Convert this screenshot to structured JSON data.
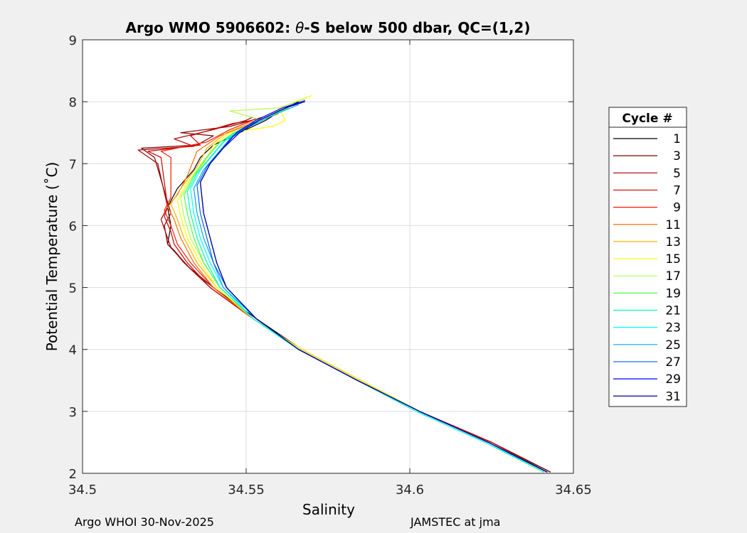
{
  "figure": {
    "footer_left": "Argo WHOI 30-Nov-2025",
    "footer_right": "JAMSTEC at jma"
  },
  "chart_data": {
    "type": "line",
    "title_prefix": "Argo WMO 5906602: ",
    "title_theta": "θ",
    "title_suffix": "-S below 500 dbar,  QC=(1,2)",
    "xlabel": "Salinity",
    "ylabel": "Potential Temperature (˚C)",
    "xlim": [
      34.5,
      34.65
    ],
    "ylim": [
      2,
      9
    ],
    "xticks": [
      34.5,
      34.55,
      34.6,
      34.65
    ],
    "xtick_labels": [
      "34.5",
      "34.55",
      "34.6",
      "34.65"
    ],
    "yticks": [
      2,
      3,
      4,
      5,
      6,
      7,
      8,
      9
    ],
    "ytick_labels": [
      "2",
      "3",
      "4",
      "5",
      "6",
      "7",
      "8",
      "9"
    ],
    "grid": true,
    "legend_title": "Cycle #",
    "legend_position": "outside-right",
    "series": [
      {
        "name": "1",
        "color": "#000000",
        "points": [
          [
            34.643,
            2.02
          ],
          [
            34.625,
            2.5
          ],
          [
            34.603,
            3.0
          ],
          [
            34.585,
            3.5
          ],
          [
            34.567,
            4.0
          ],
          [
            34.553,
            4.5
          ],
          [
            34.54,
            5.0
          ],
          [
            34.533,
            5.3
          ],
          [
            34.526,
            5.7
          ],
          [
            34.527,
            6.0
          ],
          [
            34.526,
            6.3
          ],
          [
            34.529,
            6.6
          ],
          [
            34.534,
            6.9
          ],
          [
            34.536,
            7.1
          ],
          [
            34.54,
            7.3
          ],
          [
            34.548,
            7.5
          ],
          [
            34.556,
            7.7
          ],
          [
            34.562,
            7.9
          ],
          [
            34.566,
            8.0
          ]
        ]
      },
      {
        "name": "3",
        "color": "#7f0000",
        "points": [
          [
            34.643,
            2.02
          ],
          [
            34.625,
            2.5
          ],
          [
            34.603,
            3.0
          ],
          [
            34.585,
            3.5
          ],
          [
            34.567,
            4.0
          ],
          [
            34.552,
            4.5
          ],
          [
            34.54,
            5.0
          ],
          [
            34.532,
            5.35
          ],
          [
            34.528,
            5.6
          ],
          [
            34.526,
            5.7
          ],
          [
            34.525,
            6.0
          ],
          [
            34.527,
            6.2
          ],
          [
            34.522,
            7.1
          ],
          [
            34.518,
            7.25
          ],
          [
            34.535,
            7.3
          ],
          [
            34.54,
            7.45
          ],
          [
            34.53,
            7.5
          ],
          [
            34.545,
            7.6
          ],
          [
            34.555,
            7.75
          ]
        ]
      },
      {
        "name": "5",
        "color": "#a80000",
        "points": [
          [
            34.642,
            2.02
          ],
          [
            34.625,
            2.5
          ],
          [
            34.603,
            3.0
          ],
          [
            34.585,
            3.5
          ],
          [
            34.567,
            4.0
          ],
          [
            34.552,
            4.5
          ],
          [
            34.539,
            5.0
          ],
          [
            34.531,
            5.4
          ],
          [
            34.527,
            5.65
          ],
          [
            34.526,
            5.8
          ],
          [
            34.524,
            6.1
          ],
          [
            34.526,
            6.3
          ],
          [
            34.523,
            7.0
          ],
          [
            34.517,
            7.22
          ],
          [
            34.534,
            7.28
          ],
          [
            34.528,
            7.4
          ],
          [
            34.54,
            7.55
          ],
          [
            34.55,
            7.7
          ],
          [
            34.552,
            7.75
          ]
        ]
      },
      {
        "name": "7",
        "color": "#d20000",
        "points": [
          [
            34.642,
            2.02
          ],
          [
            34.625,
            2.5
          ],
          [
            34.603,
            3.0
          ],
          [
            34.585,
            3.5
          ],
          [
            34.567,
            4.0
          ],
          [
            34.552,
            4.5
          ],
          [
            34.539,
            5.0
          ],
          [
            34.532,
            5.4
          ],
          [
            34.528,
            5.7
          ],
          [
            34.527,
            5.9
          ],
          [
            34.525,
            6.15
          ],
          [
            34.526,
            6.3
          ],
          [
            34.524,
            7.1
          ],
          [
            34.52,
            7.2
          ],
          [
            34.536,
            7.3
          ],
          [
            34.533,
            7.45
          ],
          [
            34.546,
            7.65
          ],
          [
            34.552,
            7.7
          ]
        ]
      },
      {
        "name": "9",
        "color": "#ff1a00",
        "points": [
          [
            34.642,
            2.02
          ],
          [
            34.624,
            2.5
          ],
          [
            34.603,
            3.0
          ],
          [
            34.585,
            3.5
          ],
          [
            34.567,
            4.0
          ],
          [
            34.552,
            4.5
          ],
          [
            34.54,
            5.0
          ],
          [
            34.533,
            5.4
          ],
          [
            34.529,
            5.7
          ],
          [
            34.527,
            6.0
          ],
          [
            34.525,
            6.25
          ],
          [
            34.527,
            6.45
          ],
          [
            34.527,
            7.1
          ],
          [
            34.524,
            7.2
          ],
          [
            34.538,
            7.35
          ],
          [
            34.545,
            7.55
          ],
          [
            34.552,
            7.7
          ]
        ]
      },
      {
        "name": "11",
        "color": "#ff6a00",
        "points": [
          [
            34.642,
            2.02
          ],
          [
            34.624,
            2.5
          ],
          [
            34.603,
            3.0
          ],
          [
            34.585,
            3.5
          ],
          [
            34.567,
            4.0
          ],
          [
            34.552,
            4.5
          ],
          [
            34.54,
            5.0
          ],
          [
            34.534,
            5.4
          ],
          [
            34.53,
            5.8
          ],
          [
            34.528,
            6.1
          ],
          [
            34.526,
            6.3
          ],
          [
            34.529,
            6.5
          ],
          [
            34.532,
            6.8
          ],
          [
            34.535,
            7.2
          ],
          [
            34.542,
            7.45
          ],
          [
            34.552,
            7.65
          ],
          [
            34.556,
            7.75
          ]
        ]
      },
      {
        "name": "13",
        "color": "#ffb000",
        "points": [
          [
            34.642,
            2.02
          ],
          [
            34.624,
            2.5
          ],
          [
            34.603,
            3.0
          ],
          [
            34.585,
            3.5
          ],
          [
            34.567,
            4.0
          ],
          [
            34.552,
            4.5
          ],
          [
            34.541,
            5.0
          ],
          [
            34.535,
            5.4
          ],
          [
            34.531,
            5.8
          ],
          [
            34.529,
            6.1
          ],
          [
            34.527,
            6.35
          ],
          [
            34.53,
            6.6
          ],
          [
            34.535,
            6.95
          ],
          [
            34.538,
            7.25
          ],
          [
            34.544,
            7.5
          ],
          [
            34.553,
            7.7
          ],
          [
            34.56,
            7.8
          ]
        ]
      },
      {
        "name": "15",
        "color": "#ffff00",
        "points": [
          [
            34.642,
            2.02
          ],
          [
            34.624,
            2.5
          ],
          [
            34.603,
            3.0
          ],
          [
            34.585,
            3.5
          ],
          [
            34.567,
            4.0
          ],
          [
            34.552,
            4.5
          ],
          [
            34.541,
            5.0
          ],
          [
            34.536,
            5.4
          ],
          [
            34.532,
            5.8
          ],
          [
            34.53,
            6.15
          ],
          [
            34.529,
            6.4
          ],
          [
            34.532,
            6.7
          ],
          [
            34.537,
            7.0
          ],
          [
            34.54,
            7.3
          ],
          [
            34.545,
            7.5
          ],
          [
            34.558,
            7.6
          ],
          [
            34.562,
            7.7
          ],
          [
            34.56,
            7.9
          ],
          [
            34.57,
            8.1
          ]
        ]
      },
      {
        "name": "17",
        "color": "#b0ff4a",
        "points": [
          [
            34.641,
            2.02
          ],
          [
            34.623,
            2.5
          ],
          [
            34.602,
            3.0
          ],
          [
            34.584,
            3.5
          ],
          [
            34.566,
            4.0
          ],
          [
            34.552,
            4.5
          ],
          [
            34.542,
            5.0
          ],
          [
            34.537,
            5.4
          ],
          [
            34.533,
            5.8
          ],
          [
            34.531,
            6.15
          ],
          [
            34.53,
            6.45
          ],
          [
            34.533,
            6.75
          ],
          [
            34.537,
            7.05
          ],
          [
            34.541,
            7.3
          ],
          [
            34.546,
            7.5
          ],
          [
            34.555,
            7.7
          ],
          [
            34.545,
            7.85
          ],
          [
            34.56,
            7.9
          ],
          [
            34.568,
            8.05
          ]
        ]
      },
      {
        "name": "19",
        "color": "#4aff4a",
        "points": [
          [
            34.641,
            2.02
          ],
          [
            34.623,
            2.5
          ],
          [
            34.602,
            3.0
          ],
          [
            34.584,
            3.5
          ],
          [
            34.566,
            4.0
          ],
          [
            34.552,
            4.5
          ],
          [
            34.542,
            5.0
          ],
          [
            34.537,
            5.4
          ],
          [
            34.534,
            5.8
          ],
          [
            34.532,
            6.2
          ],
          [
            34.531,
            6.5
          ],
          [
            34.534,
            6.8
          ],
          [
            34.538,
            7.1
          ],
          [
            34.542,
            7.35
          ],
          [
            34.548,
            7.55
          ],
          [
            34.556,
            7.75
          ],
          [
            34.563,
            7.9
          ]
        ]
      },
      {
        "name": "21",
        "color": "#00ffa6",
        "points": [
          [
            34.641,
            2.02
          ],
          [
            34.623,
            2.5
          ],
          [
            34.602,
            3.0
          ],
          [
            34.584,
            3.5
          ],
          [
            34.566,
            4.0
          ],
          [
            34.552,
            4.5
          ],
          [
            34.542,
            5.0
          ],
          [
            34.538,
            5.4
          ],
          [
            34.535,
            5.8
          ],
          [
            34.533,
            6.2
          ],
          [
            34.532,
            6.55
          ],
          [
            34.535,
            6.85
          ],
          [
            34.539,
            7.1
          ],
          [
            34.543,
            7.35
          ],
          [
            34.549,
            7.55
          ],
          [
            34.557,
            7.75
          ]
        ]
      },
      {
        "name": "23",
        "color": "#00ffff",
        "points": [
          [
            34.642,
            2.02
          ],
          [
            34.623,
            2.5
          ],
          [
            34.602,
            3.0
          ],
          [
            34.584,
            3.5
          ],
          [
            34.566,
            4.0
          ],
          [
            34.552,
            4.5
          ],
          [
            34.543,
            5.0
          ],
          [
            34.539,
            5.4
          ],
          [
            34.536,
            5.8
          ],
          [
            34.534,
            6.2
          ],
          [
            34.533,
            6.6
          ],
          [
            34.536,
            6.9
          ],
          [
            34.54,
            7.15
          ],
          [
            34.544,
            7.4
          ],
          [
            34.55,
            7.6
          ],
          [
            34.558,
            7.8
          ]
        ]
      },
      {
        "name": "25",
        "color": "#00a6ff",
        "points": [
          [
            34.642,
            2.02
          ],
          [
            34.624,
            2.5
          ],
          [
            34.603,
            3.0
          ],
          [
            34.584,
            3.5
          ],
          [
            34.566,
            4.0
          ],
          [
            34.553,
            4.5
          ],
          [
            34.543,
            5.0
          ],
          [
            34.54,
            5.4
          ],
          [
            34.537,
            5.8
          ],
          [
            34.535,
            6.2
          ],
          [
            34.534,
            6.6
          ],
          [
            34.537,
            6.9
          ],
          [
            34.541,
            7.15
          ],
          [
            34.545,
            7.4
          ],
          [
            34.551,
            7.6
          ],
          [
            34.559,
            7.8
          ],
          [
            34.566,
            7.95
          ]
        ]
      },
      {
        "name": "27",
        "color": "#0060ff",
        "points": [
          [
            34.642,
            2.02
          ],
          [
            34.624,
            2.5
          ],
          [
            34.603,
            3.0
          ],
          [
            34.584,
            3.5
          ],
          [
            34.566,
            4.0
          ],
          [
            34.553,
            4.5
          ],
          [
            34.544,
            5.0
          ],
          [
            34.54,
            5.4
          ],
          [
            34.538,
            5.8
          ],
          [
            34.536,
            6.2
          ],
          [
            34.535,
            6.65
          ],
          [
            34.538,
            6.95
          ],
          [
            34.542,
            7.2
          ],
          [
            34.546,
            7.45
          ],
          [
            34.552,
            7.65
          ],
          [
            34.56,
            7.85
          ],
          [
            34.567,
            8.0
          ]
        ]
      },
      {
        "name": "29",
        "color": "#0000ff",
        "points": [
          [
            34.642,
            2.02
          ],
          [
            34.624,
            2.5
          ],
          [
            34.603,
            3.0
          ],
          [
            34.584,
            3.5
          ],
          [
            34.566,
            4.0
          ],
          [
            34.553,
            4.5
          ],
          [
            34.544,
            5.0
          ],
          [
            34.541,
            5.4
          ],
          [
            34.539,
            5.8
          ],
          [
            34.537,
            6.2
          ],
          [
            34.536,
            6.7
          ],
          [
            34.539,
            7.0
          ],
          [
            34.543,
            7.25
          ],
          [
            34.547,
            7.5
          ],
          [
            34.553,
            7.7
          ],
          [
            34.561,
            7.9
          ],
          [
            34.568,
            8.02
          ]
        ]
      },
      {
        "name": "31",
        "color": "#00008f",
        "points": [
          [
            34.642,
            2.02
          ],
          [
            34.624,
            2.5
          ],
          [
            34.603,
            3.0
          ],
          [
            34.584,
            3.5
          ],
          [
            34.566,
            4.0
          ],
          [
            34.553,
            4.5
          ],
          [
            34.544,
            5.0
          ],
          [
            34.541,
            5.4
          ],
          [
            34.539,
            5.8
          ],
          [
            34.537,
            6.2
          ],
          [
            34.536,
            6.7
          ],
          [
            34.539,
            7.0
          ],
          [
            34.543,
            7.25
          ],
          [
            34.548,
            7.5
          ],
          [
            34.554,
            7.7
          ],
          [
            34.562,
            7.9
          ],
          [
            34.568,
            8.0
          ]
        ]
      }
    ]
  }
}
